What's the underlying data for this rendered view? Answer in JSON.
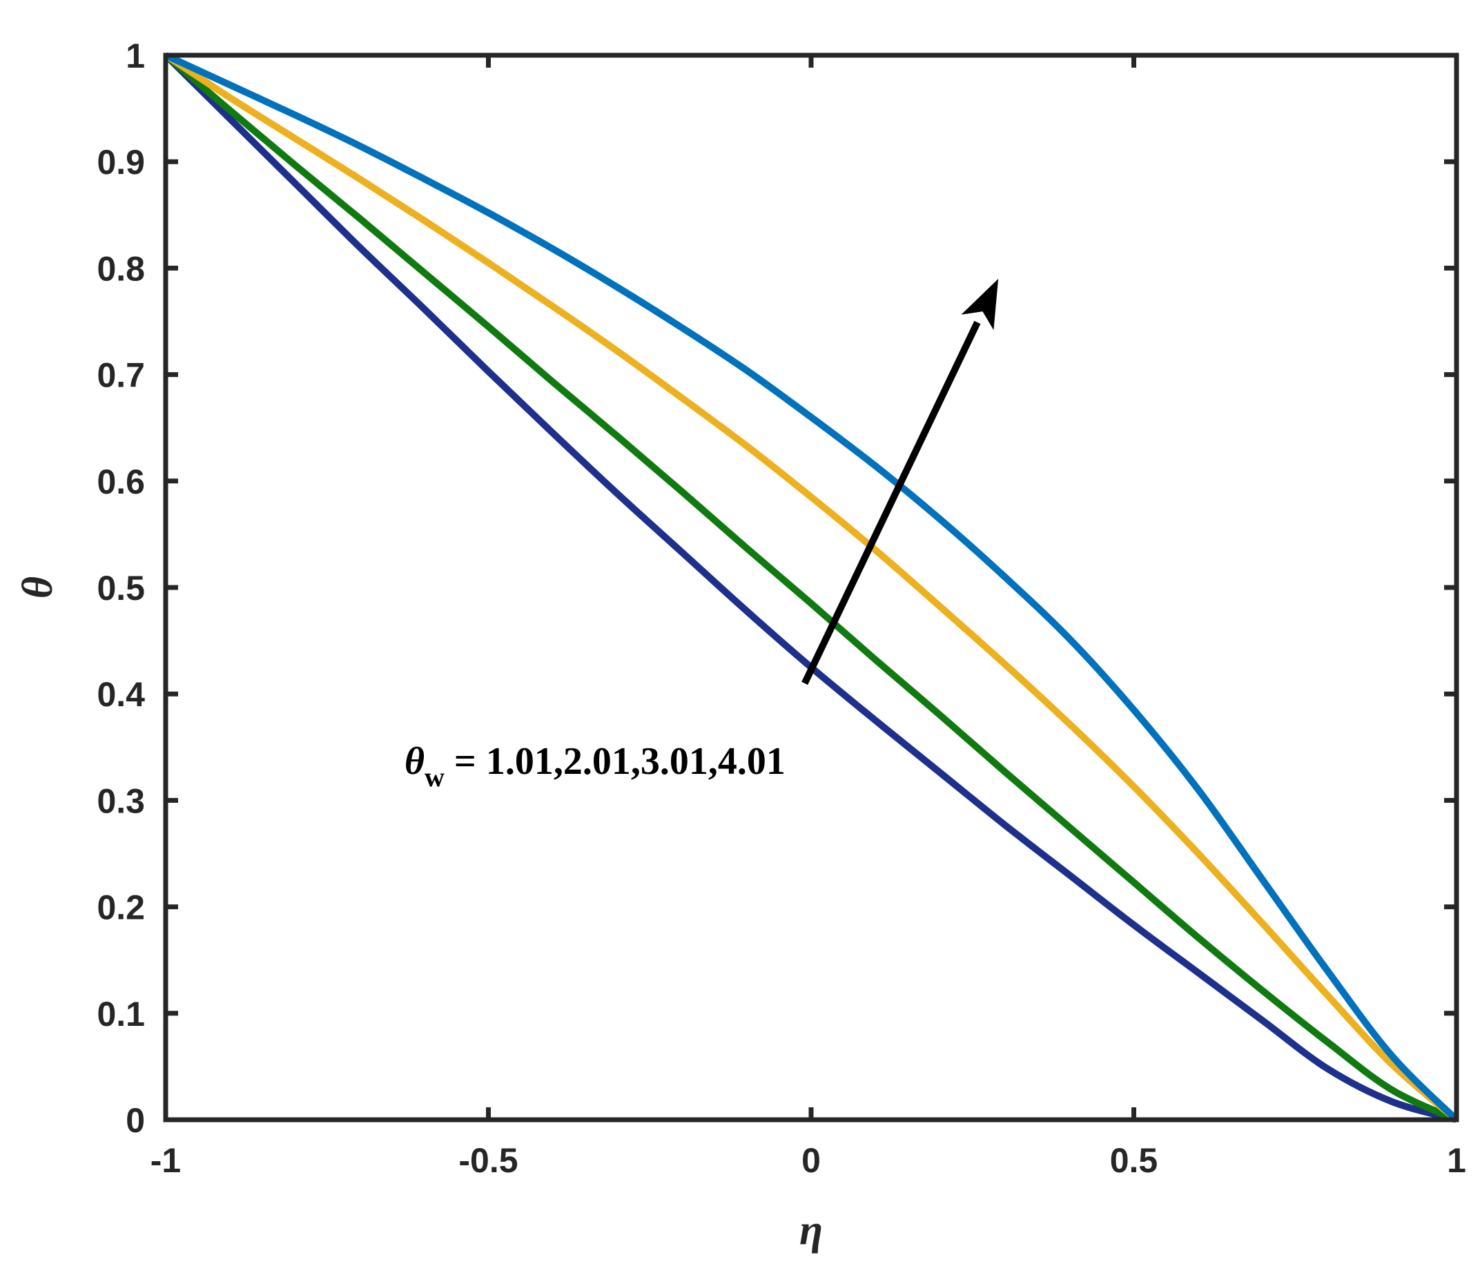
{
  "chart_data": {
    "type": "line",
    "title": "",
    "xlabel": "η",
    "ylabel": "θ",
    "xlim": [
      -1,
      1
    ],
    "ylim": [
      0,
      1
    ],
    "xticks": [
      "-1",
      "-0.5",
      "0",
      "0.5",
      "1"
    ],
    "yticks": [
      "0",
      "0.1",
      "0.2",
      "0.3",
      "0.4",
      "0.5",
      "0.6",
      "0.7",
      "0.8",
      "0.9",
      "1"
    ],
    "grid": false,
    "legend": "none",
    "x": [
      -1.0,
      -0.9,
      -0.8,
      -0.7,
      -0.6,
      -0.5,
      -0.4,
      -0.3,
      -0.2,
      -0.1,
      0.0,
      0.1,
      0.2,
      0.3,
      0.4,
      0.5,
      0.6,
      0.7,
      0.8,
      0.9,
      1.0
    ],
    "series": [
      {
        "color": "#1f2f8c",
        "values": [
          1.0,
          0.94,
          0.88,
          0.82,
          0.762,
          0.703,
          0.645,
          0.588,
          0.533,
          0.478,
          0.425,
          0.375,
          0.326,
          0.277,
          0.23,
          0.183,
          0.138,
          0.093,
          0.048,
          0.017,
          0.0
        ]
      },
      {
        "color": "#0f7a0f",
        "values": [
          1.0,
          0.948,
          0.897,
          0.847,
          0.796,
          0.745,
          0.693,
          0.642,
          0.59,
          0.537,
          0.485,
          0.432,
          0.38,
          0.327,
          0.275,
          0.223,
          0.171,
          0.121,
          0.073,
          0.028,
          0.0
        ]
      },
      {
        "color": "#edb120",
        "values": [
          1.0,
          0.96,
          0.922,
          0.884,
          0.845,
          0.805,
          0.764,
          0.722,
          0.678,
          0.633,
          0.585,
          0.535,
          0.482,
          0.428,
          0.372,
          0.313,
          0.25,
          0.184,
          0.117,
          0.052,
          0.0
        ]
      },
      {
        "color": "#0072bd",
        "values": [
          1.0,
          0.972,
          0.944,
          0.915,
          0.884,
          0.852,
          0.818,
          0.782,
          0.744,
          0.704,
          0.66,
          0.614,
          0.564,
          0.51,
          0.452,
          0.385,
          0.31,
          0.225,
          0.14,
          0.06,
          0.0
        ]
      }
    ],
    "annotation": {
      "symbol": "θ",
      "subscript": "w",
      "text": " = 1.01,2.01,3.01,4.01",
      "arrow_from": [
        -0.01,
        0.41
      ],
      "arrow_to": [
        0.29,
        0.79
      ],
      "text_anchor": [
        -0.63,
        0.325
      ]
    }
  }
}
